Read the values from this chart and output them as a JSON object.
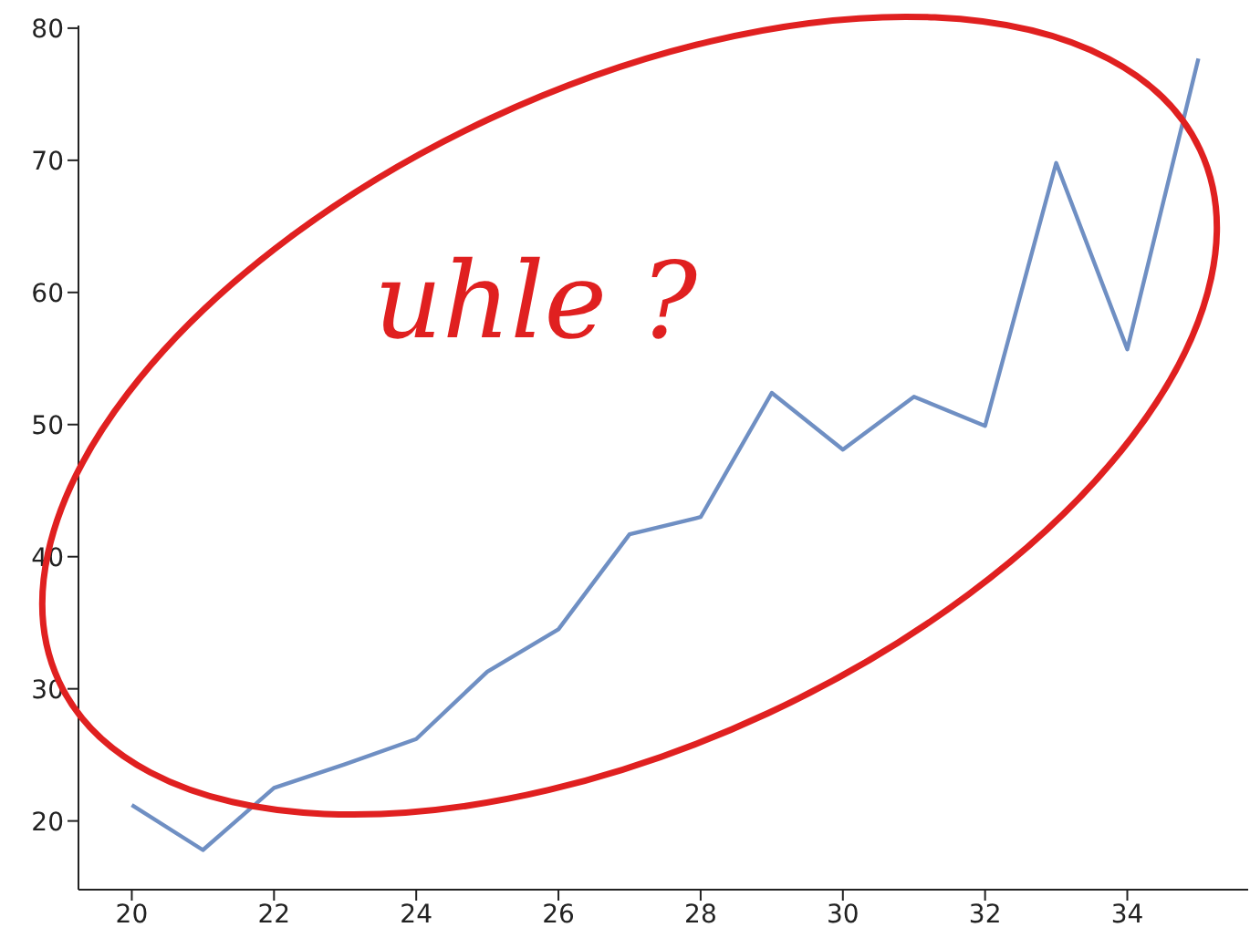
{
  "chart_data": {
    "type": "line",
    "x": [
      20,
      21,
      22,
      23,
      24,
      25,
      26,
      27,
      28,
      29,
      30,
      31,
      32,
      33,
      34,
      35
    ],
    "values": [
      21.2,
      17.8,
      22.5,
      24.3,
      26.2,
      31.3,
      34.5,
      41.7,
      43.0,
      52.4,
      48.1,
      52.1,
      49.9,
      69.8,
      55.7,
      77.7
    ],
    "color": "#6f8fc3",
    "xlim": [
      19.25,
      35.7
    ],
    "xticks": [
      20,
      22,
      24,
      26,
      28,
      30,
      32,
      34
    ],
    "ylim": [
      14.8,
      80.2
    ],
    "yticks": [
      20,
      30,
      40,
      50,
      60,
      70,
      80
    ],
    "annotations": [
      "uhle ?"
    ]
  }
}
